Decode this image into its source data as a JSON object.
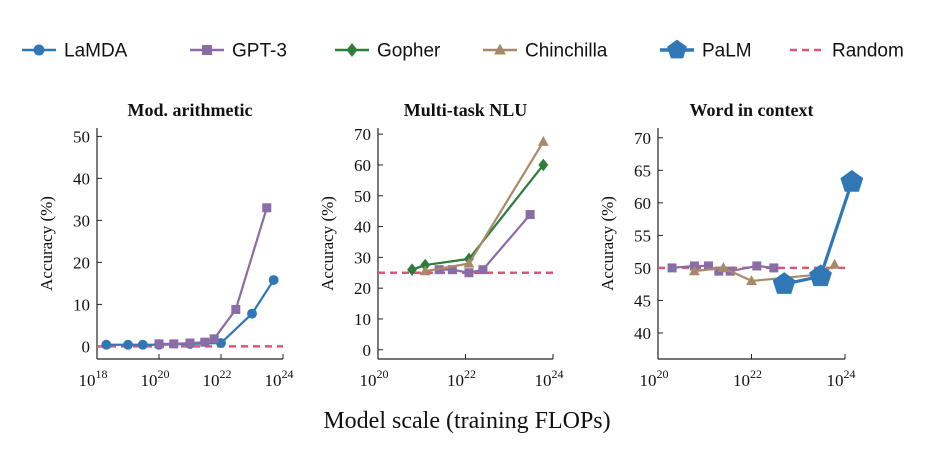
{
  "legend": {
    "placement": "top",
    "entries": [
      {
        "name": "LaMDA",
        "color": "#2f78b5",
        "marker": "circle",
        "line": "solid"
      },
      {
        "name": "GPT-3",
        "color": "#8a6ca6",
        "marker": "square",
        "line": "solid"
      },
      {
        "name": "Gopher",
        "color": "#2e7d3a",
        "marker": "diamond",
        "line": "solid"
      },
      {
        "name": "Chinchilla",
        "color": "#a88a6a",
        "marker": "triangle",
        "line": "solid"
      },
      {
        "name": "PaLM",
        "color": "#2f78b5",
        "marker": "pentagon",
        "line": "solid"
      },
      {
        "name": "Random",
        "color": "#d9577a",
        "marker": "none",
        "line": "dashed"
      }
    ]
  },
  "xlabel": "Model scale (training FLOPs)",
  "chart_data": [
    {
      "type": "line",
      "title": "Mod. arithmetic",
      "ylabel": "Accuracy (%)",
      "xscale": "log",
      "xlim": [
        1e+18,
        1e+24
      ],
      "ylim": [
        -3,
        52
      ],
      "xticks": [
        1e+18,
        1e+20,
        1e+22,
        1e+24
      ],
      "yticks": [
        0,
        10,
        20,
        30,
        40,
        50
      ],
      "grid": false,
      "random": 0,
      "series": [
        {
          "name": "LaMDA",
          "x": [
            2e+18,
            1e+19,
            3e+19,
            1e+20,
            1e+21,
            1e+22,
            1e+23,
            5e+23
          ],
          "y": [
            0.4,
            0.4,
            0.4,
            0.4,
            0.6,
            0.8,
            7.8,
            15.8
          ]
        },
        {
          "name": "GPT-3",
          "x": [
            1e+20,
            3e+20,
            1e+21,
            3e+21,
            6e+21,
            3e+22,
            3e+23
          ],
          "y": [
            0.6,
            0.6,
            0.8,
            1.0,
            1.8,
            8.8,
            33.0
          ]
        }
      ]
    },
    {
      "type": "line",
      "title": "Multi-task NLU",
      "ylabel": "Accuracy (%)",
      "xscale": "log",
      "xlim": [
        1e+20,
        1e+24
      ],
      "ylim": [
        -3,
        72
      ],
      "xticks": [
        1e+20,
        1e+22,
        1e+24
      ],
      "yticks": [
        0,
        10,
        20,
        30,
        40,
        50,
        60,
        70
      ],
      "grid": false,
      "random": 25,
      "series": [
        {
          "name": "GPT-3",
          "x": [
            2.5e+21,
            5e+21,
            1.2e+22,
            2.5e+22,
            3e+23
          ],
          "y": [
            26.0,
            26.0,
            25.0,
            26.0,
            43.9
          ]
        },
        {
          "name": "Gopher",
          "x": [
            6e+20,
            1.2e+21,
            1.2e+22,
            6e+23
          ],
          "y": [
            26.0,
            27.5,
            29.5,
            60.0
          ]
        },
        {
          "name": "Chinchilla",
          "x": [
            1.2e+21,
            1.2e+22,
            6e+23
          ],
          "y": [
            25.5,
            28.0,
            67.5
          ]
        }
      ]
    },
    {
      "type": "line",
      "title": "Word in context",
      "ylabel": "Accuracy (%)",
      "xscale": "log",
      "xlim": [
        1e+20,
        1e+24
      ],
      "ylim": [
        36,
        71.5
      ],
      "xticks": [
        1e+20,
        1e+22,
        1e+24
      ],
      "yticks": [
        40,
        45,
        50,
        55,
        60,
        65,
        70
      ],
      "grid": false,
      "random": 50,
      "series": [
        {
          "name": "GPT-3",
          "x": [
            2e+20,
            6e+20,
            1.2e+21,
            2e+21,
            3.5e+21,
            1.3e+22,
            3e+22
          ],
          "y": [
            50.0,
            50.3,
            50.3,
            49.5,
            49.5,
            50.3,
            50.0
          ]
        },
        {
          "name": "Chinchilla",
          "x": [
            6e+20,
            2.5e+21,
            1e+22,
            3e+23,
            6e+23
          ],
          "y": [
            49.5,
            50.0,
            48.0,
            49.0,
            50.5
          ]
        },
        {
          "name": "PaLM",
          "x": [
            5e+22,
            3e+23,
            1.4e+24
          ],
          "y": [
            47.5,
            48.7,
            63.2
          ]
        }
      ]
    }
  ]
}
